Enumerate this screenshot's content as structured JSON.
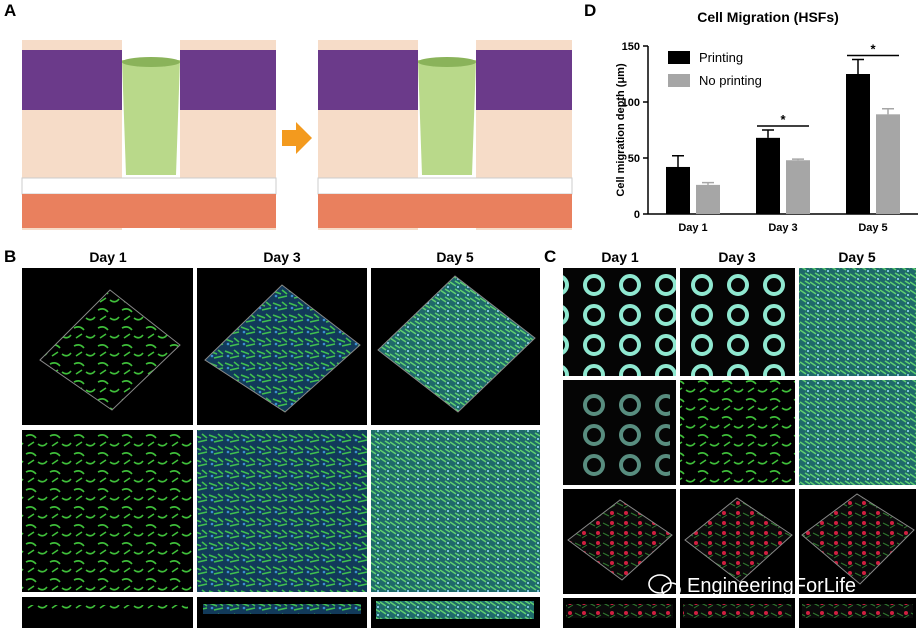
{
  "panels": {
    "a": "A",
    "b": "B",
    "c": "C",
    "d": "D"
  },
  "panel_b": {
    "columns": [
      "Day 1",
      "Day 3",
      "Day 5"
    ]
  },
  "panel_c": {
    "columns": [
      "Day 1",
      "Day 3",
      "Day 5"
    ]
  },
  "watermark": "EngineeringForLife",
  "chart_data": {
    "type": "bar",
    "title": "Cell Migration (HSFs)",
    "y_label": "Cell migration depth (μm)",
    "categories": [
      "Day 1",
      "Day 3",
      "Day 5"
    ],
    "series": [
      {
        "name": "Printing",
        "color": "#000000",
        "values": [
          42,
          68,
          125
        ],
        "errors": [
          10,
          7,
          13
        ]
      },
      {
        "name": "No printing",
        "color": "#a6a6a6",
        "values": [
          26,
          48,
          89
        ],
        "errors": [
          2,
          1,
          5
        ]
      }
    ],
    "ylim": [
      0,
      150
    ],
    "yticks": [
      0,
      50,
      100,
      150
    ],
    "legend": "upper-left",
    "significance": [
      "*",
      "*"
    ]
  }
}
